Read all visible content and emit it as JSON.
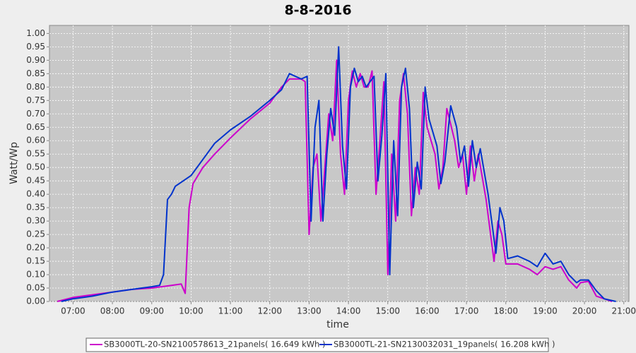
{
  "chart_data": {
    "type": "line",
    "title": "8-8-2016",
    "xlabel": "time",
    "ylabel": "Watt/Wp",
    "xlim": [
      6.4,
      21.13
    ],
    "ylim": [
      0,
      1.03
    ],
    "xticks": [
      {
        "value": 7,
        "label": "07:00"
      },
      {
        "value": 8,
        "label": "08:00"
      },
      {
        "value": 9,
        "label": "09:00"
      },
      {
        "value": 10,
        "label": "10:00"
      },
      {
        "value": 11,
        "label": "11:00"
      },
      {
        "value": 12,
        "label": "12:00"
      },
      {
        "value": 13,
        "label": "13:00"
      },
      {
        "value": 14,
        "label": "14:00"
      },
      {
        "value": 15,
        "label": "15:00"
      },
      {
        "value": 16,
        "label": "16:00"
      },
      {
        "value": 17,
        "label": "17:00"
      },
      {
        "value": 18,
        "label": "18:00"
      },
      {
        "value": 19,
        "label": "19:00"
      },
      {
        "value": 20,
        "label": "20:00"
      },
      {
        "value": 21,
        "label": "21:00"
      }
    ],
    "yticks": [
      {
        "value": 0,
        "label": "0.00"
      },
      {
        "value": 0.05,
        "label": "0.05"
      },
      {
        "value": 0.1,
        "label": "0.10"
      },
      {
        "value": 0.15,
        "label": "0.15"
      },
      {
        "value": 0.2,
        "label": "0.20"
      },
      {
        "value": 0.25,
        "label": "0.25"
      },
      {
        "value": 0.3,
        "label": "0.30"
      },
      {
        "value": 0.35,
        "label": "0.35"
      },
      {
        "value": 0.4,
        "label": "0.40"
      },
      {
        "value": 0.45,
        "label": "0.45"
      },
      {
        "value": 0.5,
        "label": "0.50"
      },
      {
        "value": 0.55,
        "label": "0.55"
      },
      {
        "value": 0.6,
        "label": "0.60"
      },
      {
        "value": 0.65,
        "label": "0.65"
      },
      {
        "value": 0.7,
        "label": "0.70"
      },
      {
        "value": 0.75,
        "label": "0.75"
      },
      {
        "value": 0.8,
        "label": "0.80"
      },
      {
        "value": 0.85,
        "label": "0.85"
      },
      {
        "value": 0.9,
        "label": "0.90"
      },
      {
        "value": 0.95,
        "label": "0.95"
      },
      {
        "value": 1,
        "label": "1.00"
      }
    ],
    "grid": true,
    "series": [
      {
        "name": "SB3000TL-20-SN2100578613_21panels( 16.649 kWh )",
        "color": "#cc00cc",
        "x": [
          6.6,
          7.0,
          7.5,
          8.0,
          8.5,
          9.0,
          9.5,
          9.75,
          9.85,
          9.95,
          10.05,
          10.3,
          10.6,
          11.0,
          11.5,
          12.0,
          12.3,
          12.5,
          12.8,
          12.9,
          13.0,
          13.1,
          13.2,
          13.3,
          13.4,
          13.5,
          13.6,
          13.7,
          13.8,
          13.9,
          14.0,
          14.1,
          14.2,
          14.3,
          14.4,
          14.5,
          14.6,
          14.7,
          14.8,
          14.9,
          15.0,
          15.1,
          15.2,
          15.3,
          15.4,
          15.5,
          15.6,
          15.7,
          15.8,
          15.9,
          16.0,
          16.2,
          16.3,
          16.4,
          16.5,
          16.7,
          16.8,
          16.9,
          17.0,
          17.1,
          17.2,
          17.3,
          17.5,
          17.7,
          17.8,
          17.9,
          18.0,
          18.3,
          18.6,
          18.8,
          19.0,
          19.2,
          19.4,
          19.6,
          19.8,
          19.9,
          20.1,
          20.3,
          20.6,
          20.7
        ],
        "values": [
          0.0,
          0.015,
          0.025,
          0.035,
          0.045,
          0.05,
          0.06,
          0.065,
          0.03,
          0.35,
          0.44,
          0.5,
          0.55,
          0.61,
          0.68,
          0.74,
          0.8,
          0.83,
          0.83,
          0.82,
          0.25,
          0.5,
          0.55,
          0.3,
          0.5,
          0.7,
          0.6,
          0.9,
          0.55,
          0.4,
          0.75,
          0.86,
          0.8,
          0.85,
          0.8,
          0.8,
          0.86,
          0.4,
          0.6,
          0.82,
          0.1,
          0.55,
          0.3,
          0.75,
          0.85,
          0.7,
          0.32,
          0.5,
          0.4,
          0.78,
          0.65,
          0.55,
          0.42,
          0.5,
          0.72,
          0.6,
          0.5,
          0.55,
          0.4,
          0.58,
          0.45,
          0.55,
          0.38,
          0.15,
          0.3,
          0.25,
          0.14,
          0.14,
          0.12,
          0.1,
          0.13,
          0.12,
          0.13,
          0.08,
          0.05,
          0.07,
          0.075,
          0.02,
          0.005,
          0.0
        ]
      },
      {
        "name": "SB3000TL-21-SN2130032031_19panels( 16.208 kWh )",
        "color": "#0033cc",
        "x": [
          6.7,
          7.0,
          7.5,
          8.0,
          8.5,
          9.0,
          9.2,
          9.3,
          9.4,
          9.5,
          9.6,
          9.8,
          10.0,
          10.3,
          10.6,
          11.0,
          11.5,
          12.0,
          12.3,
          12.5,
          12.8,
          12.95,
          13.05,
          13.15,
          13.25,
          13.35,
          13.45,
          13.55,
          13.65,
          13.75,
          13.85,
          13.95,
          14.05,
          14.15,
          14.25,
          14.35,
          14.45,
          14.55,
          14.65,
          14.75,
          14.85,
          14.95,
          15.05,
          15.15,
          15.25,
          15.35,
          15.45,
          15.55,
          15.65,
          15.75,
          15.85,
          15.95,
          16.05,
          16.25,
          16.35,
          16.45,
          16.6,
          16.75,
          16.85,
          16.95,
          17.05,
          17.15,
          17.25,
          17.35,
          17.55,
          17.75,
          17.85,
          17.95,
          18.05,
          18.3,
          18.6,
          18.8,
          19.0,
          19.2,
          19.4,
          19.6,
          19.8,
          19.9,
          20.1,
          20.3,
          20.5,
          20.8
        ],
        "values": [
          0.0,
          0.01,
          0.02,
          0.035,
          0.045,
          0.055,
          0.06,
          0.1,
          0.38,
          0.4,
          0.43,
          0.45,
          0.47,
          0.53,
          0.59,
          0.64,
          0.69,
          0.75,
          0.79,
          0.85,
          0.83,
          0.84,
          0.3,
          0.65,
          0.75,
          0.3,
          0.55,
          0.72,
          0.62,
          0.95,
          0.58,
          0.42,
          0.8,
          0.87,
          0.82,
          0.84,
          0.8,
          0.82,
          0.84,
          0.45,
          0.62,
          0.85,
          0.1,
          0.6,
          0.32,
          0.8,
          0.87,
          0.72,
          0.35,
          0.52,
          0.42,
          0.8,
          0.68,
          0.58,
          0.44,
          0.52,
          0.73,
          0.65,
          0.52,
          0.58,
          0.43,
          0.6,
          0.5,
          0.57,
          0.4,
          0.18,
          0.35,
          0.3,
          0.16,
          0.17,
          0.15,
          0.13,
          0.18,
          0.14,
          0.15,
          0.1,
          0.07,
          0.08,
          0.08,
          0.04,
          0.01,
          0.0
        ]
      }
    ]
  }
}
